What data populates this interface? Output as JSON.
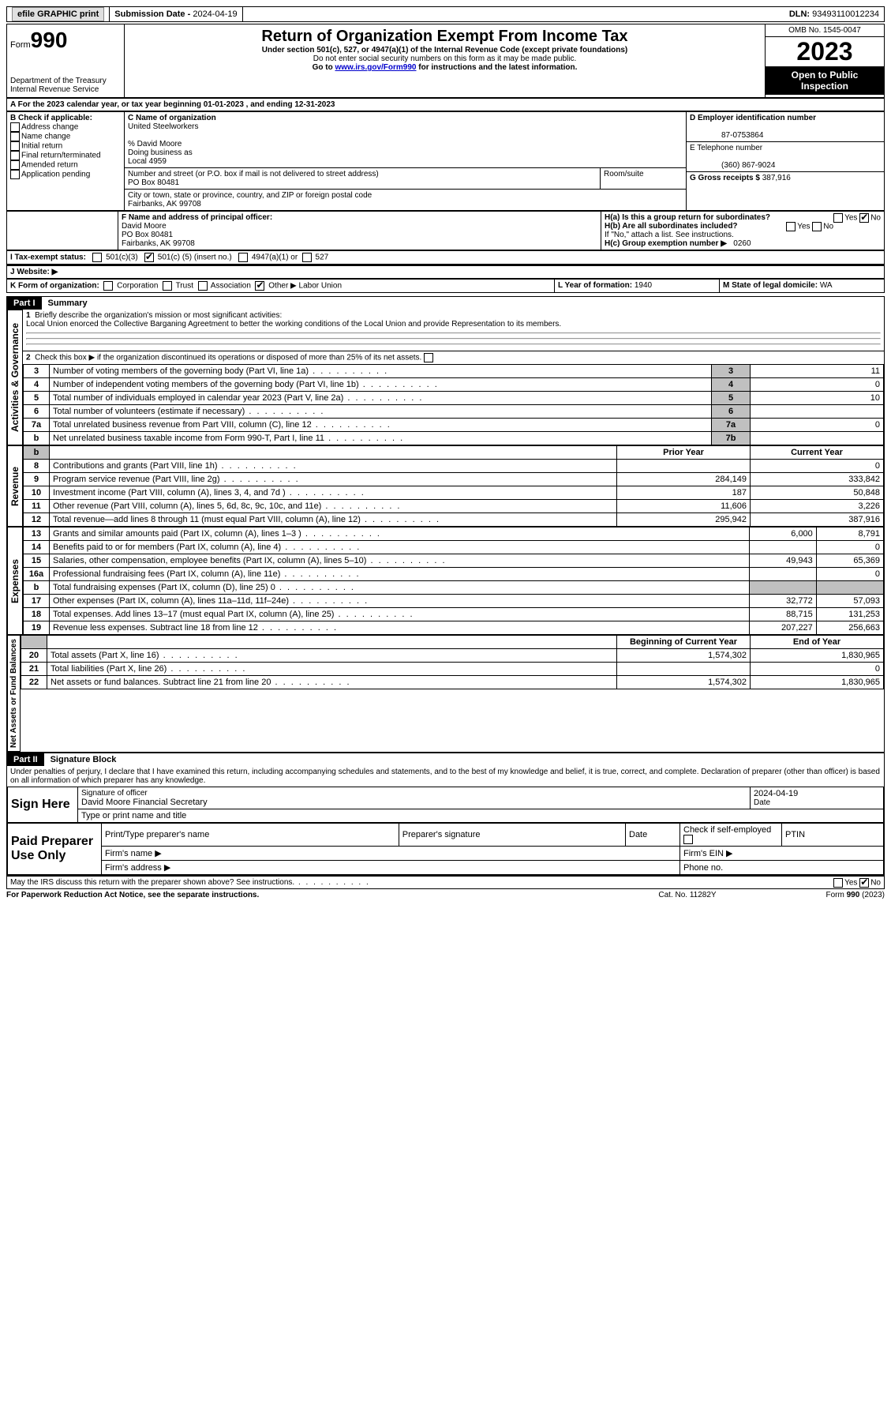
{
  "topbar": {
    "efile": "efile GRAPHIC print",
    "submission_label": "Submission Date - ",
    "submission_date": "2024-04-19",
    "dln_label": "DLN: ",
    "dln": "93493110012234"
  },
  "header": {
    "form_label": "Form",
    "form_number": "990",
    "dept": "Department of the Treasury\nInternal Revenue Service",
    "title": "Return of Organization Exempt From Income Tax",
    "subtitle": "Under section 501(c), 527, or 4947(a)(1) of the Internal Revenue Code (except private foundations)",
    "note1": "Do not enter social security numbers on this form as it may be made public.",
    "note2_prefix": "Go to ",
    "note2_link": "www.irs.gov/Form990",
    "note2_suffix": " for instructions and the latest information.",
    "omb": "OMB No. 1545-0047",
    "year": "2023",
    "open_public": "Open to Public Inspection"
  },
  "periodA": {
    "text_prefix": "A For the 2023 calendar year, or tax year beginning ",
    "begin": "01-01-2023",
    "mid": " , and ending ",
    "end": "12-31-2023"
  },
  "boxB": {
    "label": "B Check if applicable:",
    "opts": [
      "Address change",
      "Name change",
      "Initial return",
      "Final return/terminated",
      "Amended return",
      "Application pending"
    ]
  },
  "boxC": {
    "name_label": "C Name of organization",
    "name": "United Steelworkers",
    "care_of": "% David Moore",
    "dba_label": "Doing business as",
    "dba": "Local 4959",
    "street_label": "Number and street (or P.O. box if mail is not delivered to street address)",
    "street": "PO Box 80481",
    "room_label": "Room/suite",
    "city_label": "City or town, state or province, country, and ZIP or foreign postal code",
    "city": "Fairbanks, AK  99708"
  },
  "boxD": {
    "label": "D Employer identification number",
    "value": "87-0753864"
  },
  "boxE": {
    "label": "E Telephone number",
    "value": "(360) 867-9024"
  },
  "boxG": {
    "label": "G Gross receipts $ ",
    "value": "387,916"
  },
  "boxF": {
    "label": "F  Name and address of principal officer:",
    "name": "David Moore",
    "street": "PO Box 80481",
    "city": "Fairbanks, AK  99708"
  },
  "boxH": {
    "a_label": "H(a)  Is this a group return for subordinates?",
    "a_yes": "Yes",
    "a_no": "No",
    "b_label": "H(b)  Are all subordinates included?",
    "b_note": "If \"No,\" attach a list. See instructions.",
    "c_label": "H(c)  Group exemption number ▶",
    "c_value": "0260"
  },
  "boxI": {
    "label": "I  Tax-exempt status:",
    "opt1": "501(c)(3)",
    "opt2_pre": "501(c) (",
    "opt2_val": "5",
    "opt2_post": ") (insert no.)",
    "opt3": "4947(a)(1) or",
    "opt4": "527"
  },
  "boxJ": {
    "label": "J  Website: ▶"
  },
  "boxK": {
    "label": "K Form of organization:",
    "opts": [
      "Corporation",
      "Trust",
      "Association",
      "Other ▶"
    ],
    "other_val": "Labor Union"
  },
  "boxL": {
    "label": "L Year of formation: ",
    "value": "1940"
  },
  "boxM": {
    "label": "M State of legal domicile: ",
    "value": "WA"
  },
  "part1": {
    "bar": "Part I",
    "title": "Summary",
    "line1_label": "Briefly describe the organization's mission or most significant activities:",
    "line1_text": "Local Union enorced the Collective Barganing Agreetment to better the working conditions of the Local Union and provide Representation to its members.",
    "line2": "Check this box ▶         if the organization discontinued its operations or disposed of more than 25% of its net assets.",
    "vert_activities": "Activities & Governance",
    "vert_revenue": "Revenue",
    "vert_expenses": "Expenses",
    "vert_netassets": "Net Assets or Fund Balances",
    "rows_gov": [
      {
        "n": "3",
        "label": "Number of voting members of the governing body (Part VI, line 1a)",
        "box": "3",
        "val": "11"
      },
      {
        "n": "4",
        "label": "Number of independent voting members of the governing body (Part VI, line 1b)",
        "box": "4",
        "val": "0"
      },
      {
        "n": "5",
        "label": "Total number of individuals employed in calendar year 2023 (Part V, line 2a)",
        "box": "5",
        "val": "10"
      },
      {
        "n": "6",
        "label": "Total number of volunteers (estimate if necessary)",
        "box": "6",
        "val": ""
      },
      {
        "n": "7a",
        "label": "Total unrelated business revenue from Part VIII, column (C), line 12",
        "box": "7a",
        "val": "0"
      },
      {
        "n": "b",
        "label": "Net unrelated business taxable income from Form 990-T, Part I, line 11",
        "box": "7b",
        "val": ""
      }
    ],
    "col_prior": "Prior Year",
    "col_current": "Current Year",
    "rows_rev": [
      {
        "n": "8",
        "label": "Contributions and grants (Part VIII, line 1h)",
        "prior": "",
        "curr": "0"
      },
      {
        "n": "9",
        "label": "Program service revenue (Part VIII, line 2g)",
        "prior": "284,149",
        "curr": "333,842"
      },
      {
        "n": "10",
        "label": "Investment income (Part VIII, column (A), lines 3, 4, and 7d )",
        "prior": "187",
        "curr": "50,848"
      },
      {
        "n": "11",
        "label": "Other revenue (Part VIII, column (A), lines 5, 6d, 8c, 9c, 10c, and 11e)",
        "prior": "11,606",
        "curr": "3,226"
      },
      {
        "n": "12",
        "label": "Total revenue—add lines 8 through 11 (must equal Part VIII, column (A), line 12)",
        "prior": "295,942",
        "curr": "387,916"
      }
    ],
    "rows_exp": [
      {
        "n": "13",
        "label": "Grants and similar amounts paid (Part IX, column (A), lines 1–3 )",
        "prior": "6,000",
        "curr": "8,791"
      },
      {
        "n": "14",
        "label": "Benefits paid to or for members (Part IX, column (A), line 4)",
        "prior": "",
        "curr": "0"
      },
      {
        "n": "15",
        "label": "Salaries, other compensation, employee benefits (Part IX, column (A), lines 5–10)",
        "prior": "49,943",
        "curr": "65,369"
      },
      {
        "n": "16a",
        "label": "Professional fundraising fees (Part IX, column (A), line 11e)",
        "prior": "",
        "curr": "0"
      },
      {
        "n": "b",
        "label": "Total fundraising expenses (Part IX, column (D), line 25) 0",
        "prior": "__shade__",
        "curr": "__shade__"
      },
      {
        "n": "17",
        "label": "Other expenses (Part IX, column (A), lines 11a–11d, 11f–24e)",
        "prior": "32,772",
        "curr": "57,093"
      },
      {
        "n": "18",
        "label": "Total expenses. Add lines 13–17 (must equal Part IX, column (A), line 25)",
        "prior": "88,715",
        "curr": "131,253"
      },
      {
        "n": "19",
        "label": "Revenue less expenses. Subtract line 18 from line 12",
        "prior": "207,227",
        "curr": "256,663"
      }
    ],
    "col_begin": "Beginning of Current Year",
    "col_end": "End of Year",
    "rows_net": [
      {
        "n": "20",
        "label": "Total assets (Part X, line 16)",
        "prior": "1,574,302",
        "curr": "1,830,965"
      },
      {
        "n": "21",
        "label": "Total liabilities (Part X, line 26)",
        "prior": "",
        "curr": "0"
      },
      {
        "n": "22",
        "label": "Net assets or fund balances. Subtract line 21 from line 20",
        "prior": "1,574,302",
        "curr": "1,830,965"
      }
    ]
  },
  "part2": {
    "bar": "Part II",
    "title": "Signature Block",
    "declaration": "Under penalties of perjury, I declare that I have examined this return, including accompanying schedules and statements, and to the best of my knowledge and belief, it is true, correct, and complete. Declaration of preparer (other than officer) is based on all information of which preparer has any knowledge.",
    "sign_here": "Sign Here",
    "sig_officer": "Signature of officer",
    "sig_name": "David Moore  Financial Secretary",
    "sig_type": "Type or print name and title",
    "sig_date": "2024-04-19",
    "date_label": "Date",
    "paid": "Paid Preparer Use Only",
    "prep_name": "Print/Type preparer's name",
    "prep_sig": "Preparer's signature",
    "prep_date": "Date",
    "prep_check": "Check         if self-employed",
    "ptin": "PTIN",
    "firm_name": "Firm's name  ▶",
    "firm_addr": "Firm's address  ▶",
    "firm_ein": "Firm's EIN  ▶",
    "phone": "Phone no."
  },
  "footer": {
    "discuss": "May the IRS discuss this return with the preparer shown above? See instructions.",
    "yes": "Yes",
    "no": "No",
    "paperwork": "For Paperwork Reduction Act Notice, see the separate instructions.",
    "catno": "Cat. No. 11282Y",
    "formno": "Form 990 (2023)"
  }
}
